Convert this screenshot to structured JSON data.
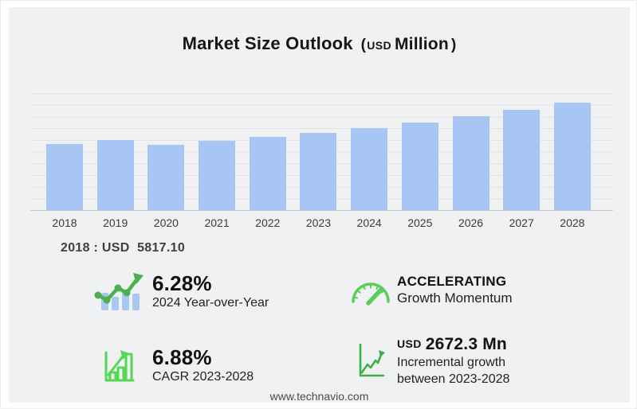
{
  "title": {
    "main": "Market Size Outlook",
    "open_paren": "(",
    "currency": "USD",
    "unit": "Million",
    "close_paren": ")"
  },
  "chart_data": {
    "type": "bar",
    "title": "Market Size Outlook (USD Million)",
    "categories": [
      "2018",
      "2019",
      "2020",
      "2021",
      "2022",
      "2023",
      "2024",
      "2025",
      "2026",
      "2027",
      "2028"
    ],
    "values": [
      5817.1,
      6160,
      5755,
      6105,
      6455,
      6765.8,
      7190.7,
      7695,
      8240,
      8815,
      9438.1
    ],
    "xlabel": "",
    "ylabel": "",
    "ylim": [
      0,
      10300
    ],
    "gridlines": 10,
    "grid": true,
    "legend": "none",
    "bar_color": "#a7c6f3"
  },
  "annotation": {
    "text": "2018 : USD  5817.10"
  },
  "stats": [
    {
      "icon": "growth-trend-icon",
      "value": "6.28%",
      "label": "2024 Year-over-Year"
    },
    {
      "icon": "speedometer-icon",
      "value": "ACCELERATING",
      "label": "Growth Momentum"
    },
    {
      "icon": "bar-chart-growth-icon",
      "value": "6.88%",
      "label": "CAGR 2023-2028"
    },
    {
      "icon": "line-chart-growth-icon",
      "value_prefix": "USD",
      "value": "2672.3 Mn",
      "label": "Incremental growth between 2023-2028"
    }
  ],
  "footer": {
    "website": "www.technavio.com"
  },
  "colors": {
    "background": "#f0f1f3",
    "bar": "#a7c6f3",
    "gridline": "#e2e3e6",
    "icon_green": "#4caf50",
    "icon_green_light": "#55d855",
    "icon_bar_blue": "#a9c8ef"
  }
}
